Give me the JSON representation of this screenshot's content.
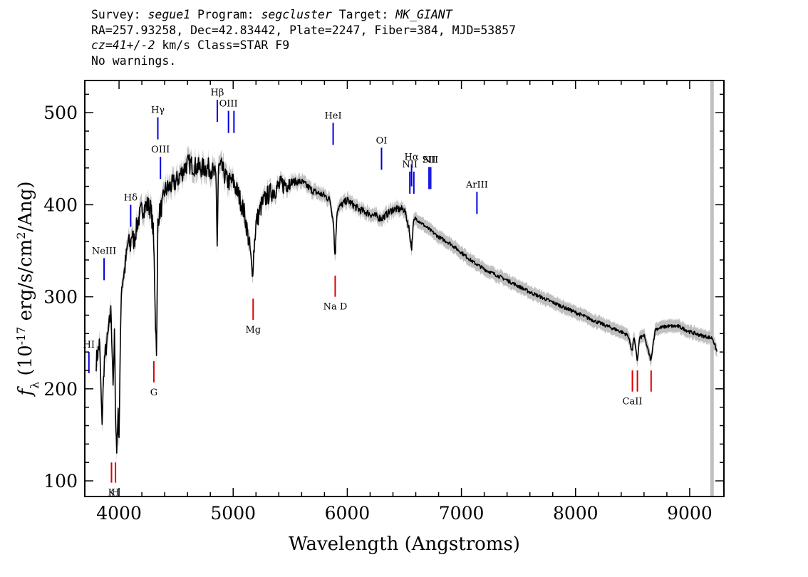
{
  "header": {
    "line1": [
      {
        "t": "Survey: ",
        "i": false
      },
      {
        "t": "segue1",
        "i": true
      },
      {
        "t": " Program: ",
        "i": false
      },
      {
        "t": "segcluster",
        "i": true
      },
      {
        "t": " Target: ",
        "i": false
      },
      {
        "t": "MK_GIANT",
        "i": true
      }
    ],
    "line2": "RA=257.93258, Dec=42.83442, Plate=2247, Fiber=384, MJD=53857",
    "line3": [
      {
        "t": "cz=41+/-2",
        "i": true
      },
      {
        "t": " km/s Class=STAR F9",
        "i": false
      }
    ],
    "line4": "No warnings."
  },
  "chart_data": {
    "type": "line",
    "xlabel": "Wavelength (Angstroms)",
    "ylabel": "f_λ (10^-17 erg/s/cm^2/Ang)",
    "xlim": [
      3700,
      9300
    ],
    "ylim": [
      83,
      535
    ],
    "xticks": [
      4000,
      5000,
      6000,
      7000,
      8000,
      9000
    ],
    "yticks": [
      100,
      200,
      300,
      400,
      500
    ],
    "grid": false,
    "colors": {
      "spectrum": "#000000",
      "error": "#c0c0c0",
      "emission_line": "#0000dd",
      "absorption_line": "#dd0000",
      "thin_line": "#000000"
    },
    "series": [
      {
        "x": [
          3800,
          3830,
          3850,
          3870,
          3900,
          3930,
          3950,
          3960,
          3970,
          3980,
          3990,
          4000,
          4020,
          4050,
          4080,
          4100,
          4110,
          4130,
          4160,
          4200,
          4250,
          4280,
          4300,
          4310,
          4320,
          4330,
          4340,
          4350,
          4380,
          4400,
          4450,
          4500,
          4550,
          4600,
          4700,
          4800,
          4850,
          4861,
          4870,
          4900,
          4950,
          5000,
          5050,
          5100,
          5150,
          5168,
          5175,
          5200,
          5250,
          5300,
          5400,
          5500,
          5600,
          5700,
          5800,
          5850,
          5880,
          5890,
          5896,
          5910,
          5950,
          6000,
          6100,
          6200,
          6300,
          6400,
          6500,
          6540,
          6563,
          6580,
          6600,
          6700,
          6800,
          6900,
          7000,
          7100,
          7200,
          7400,
          7600,
          7800,
          8000,
          8200,
          8400,
          8460,
          8498,
          8510,
          8542,
          8560,
          8600,
          8662,
          8680,
          8700,
          8800,
          8900,
          9000,
          9100,
          9200,
          9240
        ],
        "y": [
          230,
          250,
          160,
          230,
          255,
          285,
          200,
          260,
          170,
          130,
          175,
          150,
          310,
          330,
          360,
          355,
          370,
          360,
          380,
          395,
          400,
          395,
          370,
          330,
          270,
          240,
          380,
          390,
          400,
          415,
          420,
          425,
          435,
          445,
          440,
          440,
          430,
          350,
          440,
          440,
          425,
          425,
          410,
          390,
          350,
          320,
          340,
          380,
          400,
          410,
          420,
          425,
          425,
          415,
          410,
          405,
          380,
          345,
          350,
          395,
          400,
          405,
          395,
          390,
          385,
          395,
          395,
          375,
          352,
          380,
          385,
          375,
          365,
          358,
          348,
          338,
          330,
          318,
          305,
          294,
          283,
          272,
          262,
          258,
          240,
          258,
          230,
          255,
          258,
          230,
          250,
          265,
          268,
          268,
          262,
          258,
          255,
          240
        ]
      }
    ],
    "emission_lines": [
      {
        "label": "HI",
        "x": 3736,
        "ylo": 217,
        "yhi": 240
      },
      {
        "label": "NeIII",
        "x": 3869,
        "ylo": 318,
        "yhi": 342
      },
      {
        "label": "Hδ",
        "x": 4102,
        "ylo": 376,
        "yhi": 400
      },
      {
        "label": "Hγ",
        "x": 4340,
        "ylo": 471,
        "yhi": 495
      },
      {
        "label": "OIII",
        "x": 4363,
        "ylo": 428,
        "yhi": 452
      },
      {
        "label": "Hβ",
        "x": 4861,
        "ylo": 490,
        "yhi": 514
      },
      {
        "label": "OIII",
        "x": 4959,
        "ylo": 478,
        "yhi": 502
      },
      {
        "label": "",
        "x": 5007,
        "ylo": 478,
        "yhi": 502
      },
      {
        "label": "HeI",
        "x": 5876,
        "ylo": 465,
        "yhi": 489
      },
      {
        "label": "OI",
        "x": 6300,
        "ylo": 438,
        "yhi": 462
      },
      {
        "label": "NII",
        "x": 6548,
        "ylo": 412,
        "yhi": 436
      },
      {
        "label": "Hα",
        "x": 6563,
        "ylo": 420,
        "yhi": 444
      },
      {
        "label": "",
        "x": 6583,
        "ylo": 412,
        "yhi": 436
      },
      {
        "label": "SII",
        "x": 6716,
        "ylo": 417,
        "yhi": 441
      },
      {
        "label": "NII",
        "x": 6731,
        "ylo": 417,
        "yhi": 441
      },
      {
        "label": "ArIII",
        "x": 7136,
        "ylo": 390,
        "yhi": 414
      }
    ],
    "absorption_lines": [
      {
        "label": "K",
        "x": 3934,
        "ylo": 98,
        "yhi": 120
      },
      {
        "label": "H",
        "x": 3969,
        "ylo": 98,
        "yhi": 120
      },
      {
        "label": "G",
        "x": 4305,
        "ylo": 207,
        "yhi": 230
      },
      {
        "label": "Mg",
        "x": 5175,
        "ylo": 275,
        "yhi": 298
      },
      {
        "label": "Na D",
        "x": 5894,
        "ylo": 300,
        "yhi": 323
      },
      {
        "label": "CaII",
        "x": 8498,
        "ylo": 197,
        "yhi": 220
      },
      {
        "label": "",
        "x": 8542,
        "ylo": 197,
        "yhi": 220
      },
      {
        "label": "",
        "x": 8662,
        "ylo": 197,
        "yhi": 220
      }
    ]
  }
}
